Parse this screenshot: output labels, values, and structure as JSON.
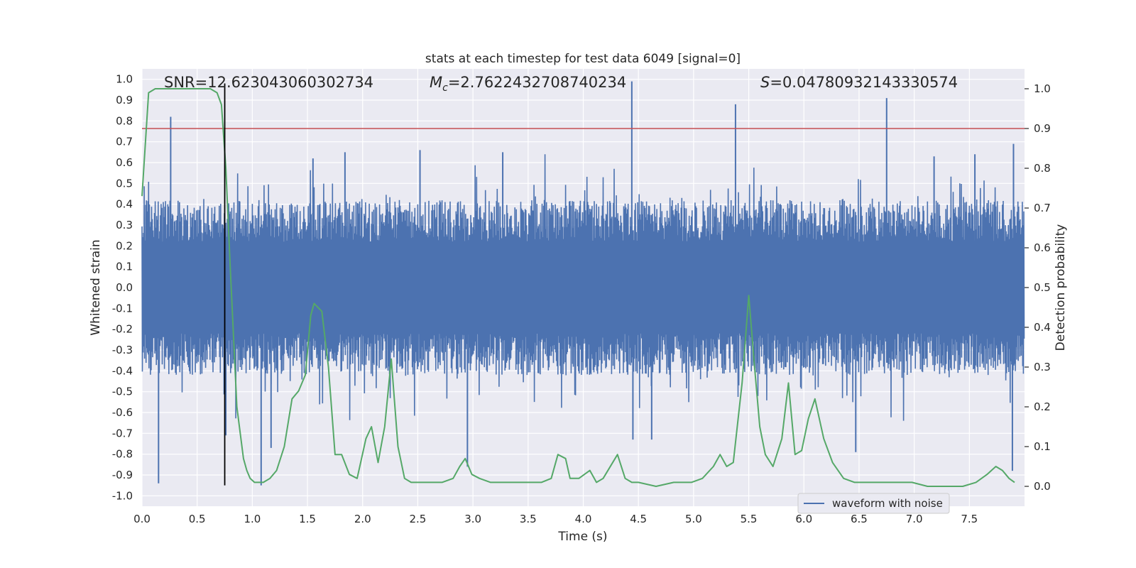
{
  "chart_data": {
    "type": "line",
    "title": "stats at each timestep for test data 6049 [signal=0]",
    "xlabel": "Time (s)",
    "ylabel": "Whitened strain",
    "ylabel_right": "Detection probability",
    "xlim": [
      0.0,
      8.0
    ],
    "ylim": [
      -1.05,
      1.05
    ],
    "ylim_right": [
      -0.05,
      1.05
    ],
    "x_ticks": [
      "0.0",
      "0.5",
      "1.0",
      "1.5",
      "2.0",
      "2.5",
      "3.0",
      "3.5",
      "4.0",
      "4.5",
      "5.0",
      "5.5",
      "6.0",
      "6.5",
      "7.0",
      "7.5"
    ],
    "x_tick_values": [
      0,
      0.5,
      1,
      1.5,
      2,
      2.5,
      3,
      3.5,
      4,
      4.5,
      5,
      5.5,
      6,
      6.5,
      7,
      7.5
    ],
    "y_ticks": [
      "1.0",
      "0.9",
      "0.8",
      "0.7",
      "0.6",
      "0.5",
      "0.4",
      "0.3",
      "0.2",
      "0.1",
      "0.0",
      "-0.1",
      "-0.2",
      "-0.3",
      "-0.4",
      "-0.5",
      "-0.6",
      "-0.7",
      "-0.8",
      "-0.9",
      "-1.0"
    ],
    "y_tick_values": [
      1.0,
      0.9,
      0.8,
      0.7,
      0.6,
      0.5,
      0.4,
      0.3,
      0.2,
      0.1,
      0.0,
      -0.1,
      -0.2,
      -0.3,
      -0.4,
      -0.5,
      -0.6,
      -0.7,
      -0.8,
      -0.9,
      -1.0
    ],
    "y2_ticks": [
      "1.0",
      "0.9",
      "0.8",
      "0.7",
      "0.6",
      "0.5",
      "0.4",
      "0.3",
      "0.2",
      "0.1",
      "0.0"
    ],
    "y2_tick_values": [
      1.0,
      0.9,
      0.8,
      0.7,
      0.6,
      0.5,
      0.4,
      0.3,
      0.2,
      0.1,
      0.0
    ],
    "annotations": {
      "snr": "SNR=12.623043060302734",
      "mc_symbol": "M",
      "mc_sub": "c",
      "mc_value": "=2.7622432708740234",
      "s_symbol": "S",
      "s_value": "=0.04780932143330574"
    },
    "threshold": {
      "axis": "right",
      "value": 0.9,
      "color": "#c44e52"
    },
    "marker_line": {
      "x": 0.75,
      "y_from": -0.95,
      "y_to": 0.98,
      "color": "#000000"
    },
    "legend": {
      "label": "waveform with noise",
      "location": "lower-right"
    },
    "colors": {
      "waveform": "#4c72b0",
      "probability": "#55a868",
      "plot_bg": "#eaeaf2",
      "grid": "#ffffff"
    },
    "series": [
      {
        "name": "waveform with noise",
        "axis": "left",
        "style": "noisy-waveform",
        "envelope_pos": 0.4,
        "envelope_neg": -0.4,
        "spikes": [
          {
            "x": 0.26,
            "y": 0.82
          },
          {
            "x": 0.15,
            "y": -0.94
          },
          {
            "x": 1.08,
            "y": -0.95
          },
          {
            "x": 1.17,
            "y": -0.77
          },
          {
            "x": 1.55,
            "y": 0.62
          },
          {
            "x": 1.84,
            "y": 0.65
          },
          {
            "x": 2.52,
            "y": 0.66
          },
          {
            "x": 2.95,
            "y": -0.86
          },
          {
            "x": 3.27,
            "y": 0.65
          },
          {
            "x": 4.44,
            "y": 0.99
          },
          {
            "x": 4.45,
            "y": -0.73
          },
          {
            "x": 4.62,
            "y": -0.73
          },
          {
            "x": 5.38,
            "y": 0.88
          },
          {
            "x": 6.75,
            "y": 0.91
          },
          {
            "x": 6.47,
            "y": -0.79
          },
          {
            "x": 7.18,
            "y": 0.63
          },
          {
            "x": 7.55,
            "y": 0.64
          },
          {
            "x": 7.9,
            "y": 0.69
          },
          {
            "x": 7.89,
            "y": -0.88
          },
          {
            "x": 0.76,
            "y": -0.71
          }
        ]
      },
      {
        "name": "detection probability",
        "axis": "right",
        "x": [
          0.0,
          0.06,
          0.12,
          0.3,
          0.5,
          0.62,
          0.68,
          0.72,
          0.76,
          0.8,
          0.86,
          0.92,
          0.95,
          0.98,
          1.02,
          1.06,
          1.1,
          1.16,
          1.22,
          1.29,
          1.36,
          1.42,
          1.48,
          1.53,
          1.56,
          1.63,
          1.69,
          1.75,
          1.81,
          1.88,
          1.95,
          2.03,
          2.08,
          2.14,
          2.2,
          2.26,
          2.32,
          2.38,
          2.44,
          2.52,
          2.62,
          2.72,
          2.82,
          2.88,
          2.93,
          2.99,
          3.06,
          3.16,
          3.26,
          3.42,
          3.62,
          3.71,
          3.77,
          3.84,
          3.88,
          3.96,
          4.06,
          4.12,
          4.18,
          4.31,
          4.38,
          4.44,
          4.5,
          4.66,
          4.82,
          4.98,
          5.08,
          5.18,
          5.24,
          5.3,
          5.36,
          5.44,
          5.5,
          5.55,
          5.6,
          5.65,
          5.72,
          5.8,
          5.86,
          5.92,
          5.98,
          6.04,
          6.1,
          6.18,
          6.26,
          6.36,
          6.46,
          6.64,
          6.8,
          6.88,
          6.98,
          7.12,
          7.28,
          7.44,
          7.56,
          7.66,
          7.74,
          7.8,
          7.86,
          7.91
        ],
        "y": [
          0.73,
          0.99,
          1.0,
          1.0,
          1.0,
          1.0,
          0.99,
          0.96,
          0.8,
          0.55,
          0.2,
          0.07,
          0.04,
          0.02,
          0.01,
          0.01,
          0.01,
          0.02,
          0.04,
          0.1,
          0.22,
          0.24,
          0.28,
          0.43,
          0.46,
          0.44,
          0.3,
          0.08,
          0.08,
          0.03,
          0.02,
          0.12,
          0.15,
          0.06,
          0.15,
          0.32,
          0.1,
          0.02,
          0.01,
          0.01,
          0.01,
          0.01,
          0.02,
          0.05,
          0.07,
          0.03,
          0.02,
          0.01,
          0.01,
          0.01,
          0.01,
          0.02,
          0.08,
          0.07,
          0.02,
          0.02,
          0.04,
          0.01,
          0.02,
          0.08,
          0.02,
          0.01,
          0.01,
          0.0,
          0.01,
          0.01,
          0.02,
          0.05,
          0.08,
          0.05,
          0.06,
          0.26,
          0.48,
          0.31,
          0.15,
          0.08,
          0.05,
          0.12,
          0.26,
          0.08,
          0.09,
          0.17,
          0.22,
          0.12,
          0.06,
          0.02,
          0.01,
          0.01,
          0.01,
          0.01,
          0.01,
          0.0,
          0.0,
          0.0,
          0.01,
          0.03,
          0.05,
          0.04,
          0.02,
          0.01
        ]
      }
    ]
  }
}
